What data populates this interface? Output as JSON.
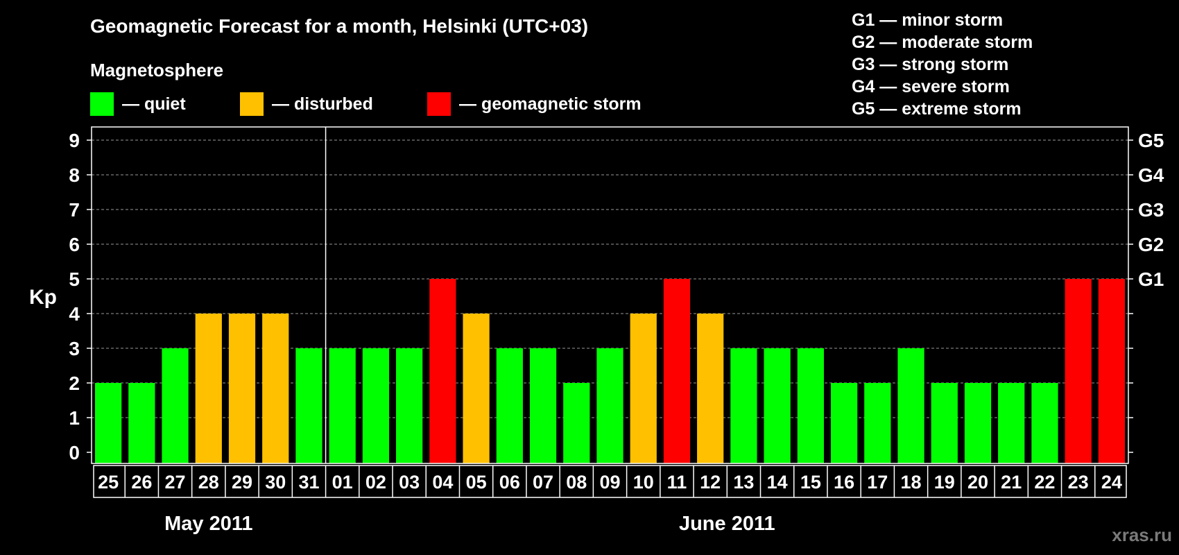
{
  "title": "Geomagnetic Forecast for a month, Helsinki (UTC+03)",
  "legend": {
    "title": "Magnetosphere",
    "items": [
      {
        "label": "— quiet",
        "color": "#00ff00"
      },
      {
        "label": "— disturbed",
        "color": "#ffc000"
      },
      {
        "label": "— geomagnetic storm",
        "color": "#ff0000"
      }
    ]
  },
  "storm_levels": [
    "G1 — minor storm",
    "G2 — moderate storm",
    "G3 — strong storm",
    "G4 — severe storm",
    "G5 — extreme storm"
  ],
  "watermark": "xras.ru",
  "chart_data": {
    "type": "bar",
    "ylabel": "Kp",
    "ylim": [
      0,
      9
    ],
    "yticks": [
      "0",
      "1",
      "2",
      "3",
      "4",
      "5",
      "6",
      "7",
      "8",
      "9"
    ],
    "right_axis": [
      {
        "value": 5,
        "label": "G1"
      },
      {
        "value": 6,
        "label": "G2"
      },
      {
        "value": 7,
        "label": "G3"
      },
      {
        "value": 8,
        "label": "G4"
      },
      {
        "value": 9,
        "label": "G5"
      }
    ],
    "categories": [
      "25",
      "26",
      "27",
      "28",
      "29",
      "30",
      "31",
      "01",
      "02",
      "03",
      "04",
      "05",
      "06",
      "07",
      "08",
      "09",
      "10",
      "11",
      "12",
      "13",
      "14",
      "15",
      "16",
      "17",
      "18",
      "19",
      "20",
      "21",
      "22",
      "23",
      "24"
    ],
    "values": [
      2,
      2,
      3,
      4,
      4,
      4,
      3,
      3,
      3,
      3,
      5,
      4,
      3,
      3,
      2,
      3,
      4,
      5,
      4,
      3,
      3,
      3,
      2,
      2,
      3,
      2,
      2,
      2,
      2,
      5,
      5
    ],
    "months": [
      {
        "label": "May 2011",
        "start": 0,
        "end": 6
      },
      {
        "label": "June 2011",
        "start": 7,
        "end": 30
      }
    ],
    "colors": {
      "quiet": "#00ff00",
      "disturbed": "#ffc000",
      "storm": "#ff0000"
    },
    "grid": true
  }
}
